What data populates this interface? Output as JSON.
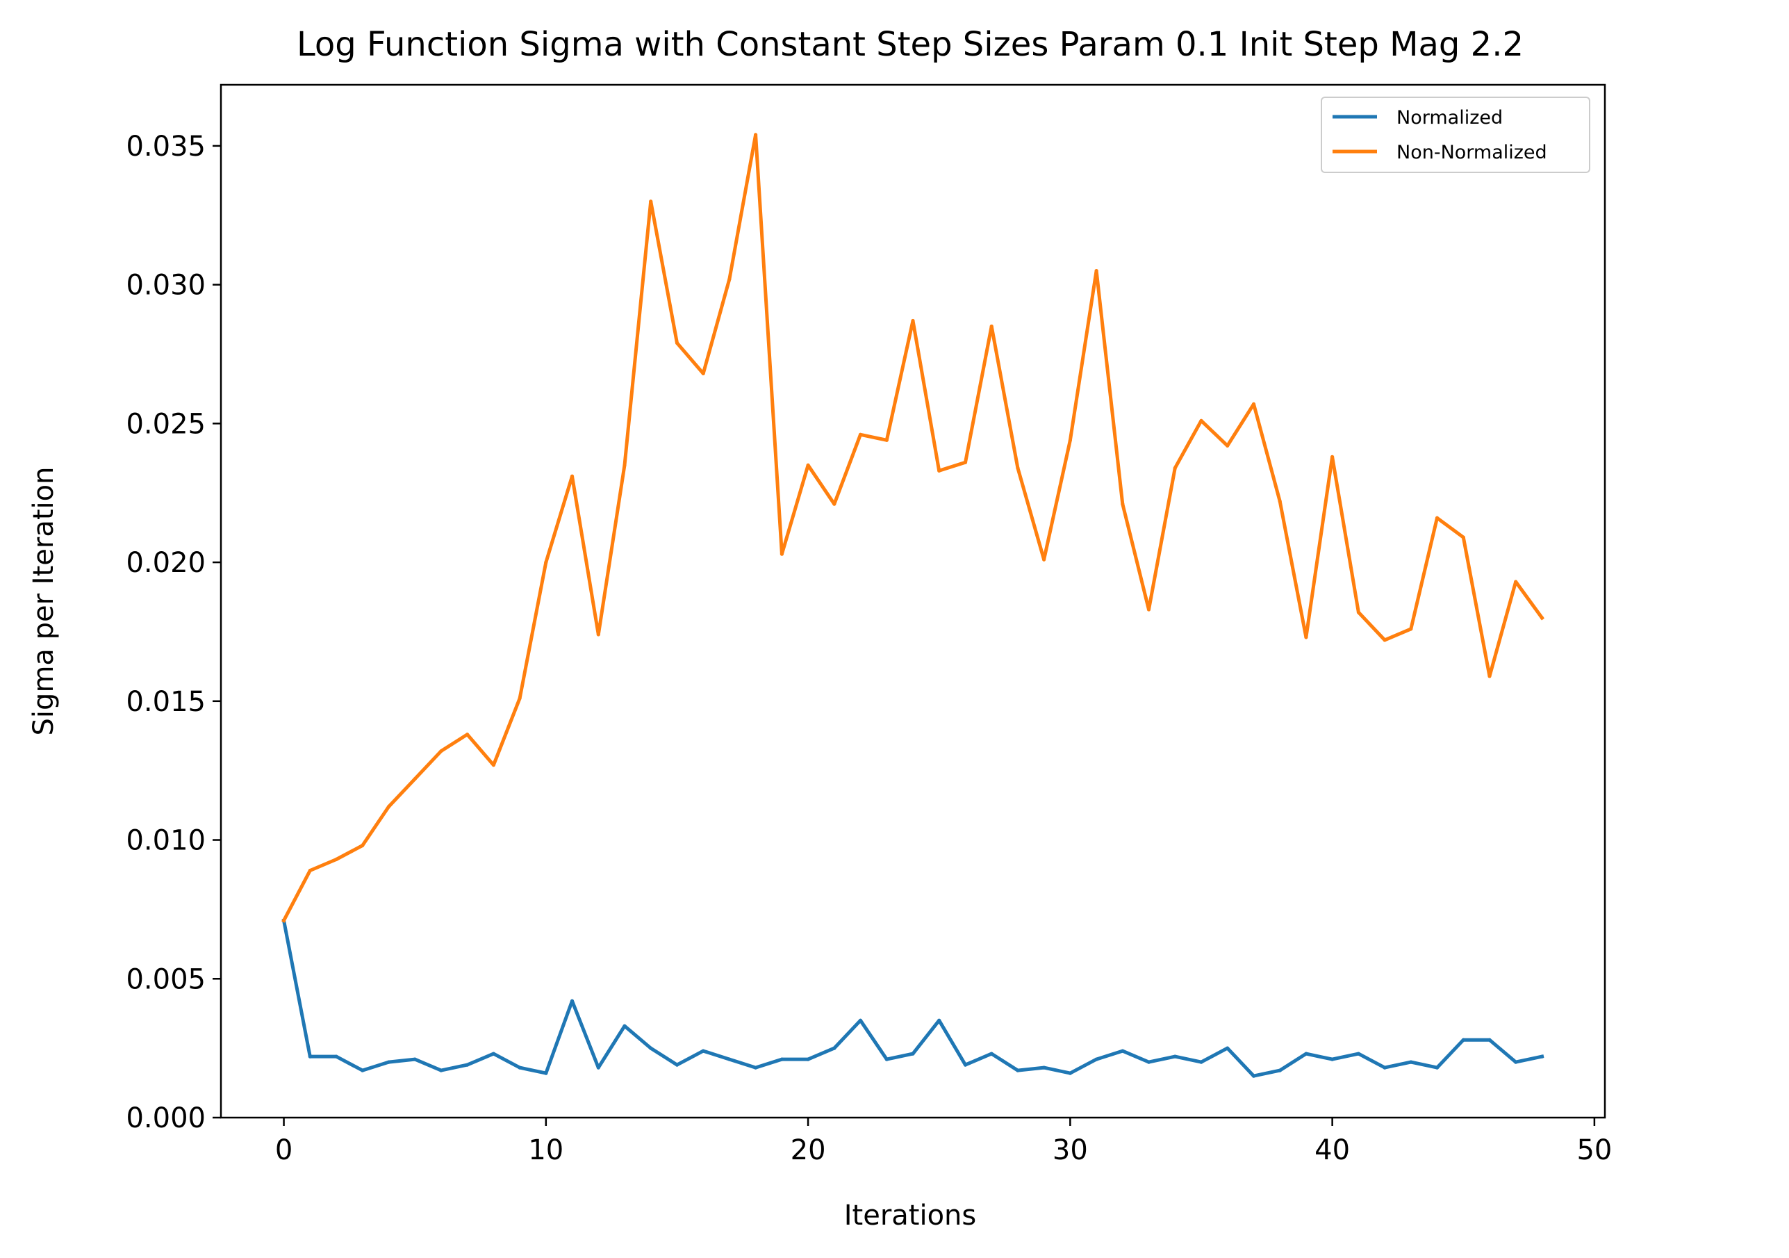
{
  "chart_data": {
    "type": "line",
    "title": "Log Function Sigma with Constant Step Sizes Param 0.1 Init Step Mag 2.2",
    "xlabel": "Iterations",
    "ylabel": "Sigma per Iteration",
    "xlim": [
      -2.4,
      50.4
    ],
    "ylim": [
      0,
      0.0372
    ],
    "xticks": [
      0,
      10,
      20,
      30,
      40,
      50
    ],
    "xtick_labels": [
      "0",
      "10",
      "20",
      "30",
      "40",
      "50"
    ],
    "yticks": [
      0,
      0.005,
      0.01,
      0.015,
      0.02,
      0.025,
      0.03,
      0.035
    ],
    "ytick_labels": [
      "0.000",
      "0.005",
      "0.010",
      "0.015",
      "0.020",
      "0.025",
      "0.030",
      "0.035"
    ],
    "grid": false,
    "legend_position": "top-right",
    "x": [
      0,
      1,
      2,
      3,
      4,
      5,
      6,
      7,
      8,
      9,
      10,
      11,
      12,
      13,
      14,
      15,
      16,
      17,
      18,
      19,
      20,
      21,
      22,
      23,
      24,
      25,
      26,
      27,
      28,
      29,
      30,
      31,
      32,
      33,
      34,
      35,
      36,
      37,
      38,
      39,
      40,
      41,
      42,
      43,
      44,
      45,
      46,
      47,
      48
    ],
    "series": [
      {
        "name": "Normalized",
        "color": "#1f77b4",
        "values": [
          0.0071,
          0.0022,
          0.0022,
          0.0017,
          0.002,
          0.0021,
          0.0017,
          0.0019,
          0.0023,
          0.0018,
          0.0016,
          0.0042,
          0.0018,
          0.0033,
          0.0025,
          0.0019,
          0.0024,
          0.0021,
          0.0018,
          0.0021,
          0.0021,
          0.0025,
          0.0035,
          0.0021,
          0.0023,
          0.0035,
          0.0019,
          0.0023,
          0.0017,
          0.0018,
          0.0016,
          0.0021,
          0.0024,
          0.002,
          0.0022,
          0.002,
          0.0025,
          0.0015,
          0.0017,
          0.0023,
          0.0021,
          0.0023,
          0.0018,
          0.002,
          0.0018,
          0.0028,
          0.0028,
          0.002,
          0.0022
        ]
      },
      {
        "name": "Non-Normalized",
        "color": "#ff7f0e",
        "values": [
          0.0071,
          0.0089,
          0.0093,
          0.0098,
          0.0112,
          0.0122,
          0.0132,
          0.0138,
          0.0127,
          0.0151,
          0.02,
          0.0231,
          0.0174,
          0.0235,
          0.033,
          0.0279,
          0.0268,
          0.0302,
          0.0354,
          0.0203,
          0.0235,
          0.0221,
          0.0246,
          0.0244,
          0.0287,
          0.0233,
          0.0236,
          0.0285,
          0.0234,
          0.0201,
          0.0244,
          0.0305,
          0.0221,
          0.0183,
          0.0234,
          0.0251,
          0.0242,
          0.0257,
          0.0222,
          0.0173,
          0.0238,
          0.0182,
          0.0172,
          0.0176,
          0.0216,
          0.0209,
          0.0159,
          0.0193,
          0.018
        ]
      }
    ]
  }
}
